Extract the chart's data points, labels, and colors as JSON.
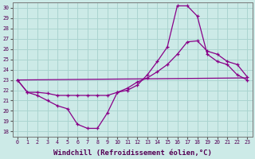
{
  "background_color": "#cceae7",
  "grid_color": "#aad4d0",
  "line_color": "#880088",
  "marker": "+",
  "xlabel": "Windchill (Refroidissement éolien,°C)",
  "xlabel_fontsize": 6.5,
  "ylabel_ticks": [
    18,
    19,
    20,
    21,
    22,
    23,
    24,
    25,
    26,
    27,
    28,
    29,
    30
  ],
  "xlim": [
    -0.5,
    23.5
  ],
  "ylim": [
    17.5,
    30.5
  ],
  "xtick_labels": [
    "0",
    "1",
    "2",
    "3",
    "4",
    "5",
    "6",
    "7",
    "8",
    "9",
    "10",
    "11",
    "12",
    "13",
    "14",
    "15",
    "16",
    "17",
    "18",
    "19",
    "20",
    "21",
    "22",
    "23"
  ],
  "series": [
    {
      "x": [
        0,
        1,
        2,
        3,
        4,
        5,
        6,
        7,
        8,
        9,
        10,
        11,
        12,
        13,
        14,
        15,
        16,
        17,
        18,
        19,
        20,
        21,
        22,
        23
      ],
      "y": [
        23,
        21.8,
        21.5,
        21.0,
        20.5,
        20.2,
        18.7,
        18.3,
        18.3,
        19.8,
        21.8,
        22.0,
        22.5,
        23.5,
        24.8,
        26.2,
        30.2,
        30.2,
        29.2,
        25.5,
        24.8,
        24.5,
        23.5,
        23.0
      ]
    },
    {
      "x": [
        0,
        1,
        2,
        3,
        4,
        5,
        6,
        7,
        8,
        9,
        10,
        11,
        12,
        13,
        14,
        15,
        16,
        17,
        18,
        19,
        20,
        21,
        22,
        23
      ],
      "y": [
        23,
        21.8,
        21.8,
        21.7,
        21.5,
        21.5,
        21.5,
        21.5,
        21.5,
        21.5,
        21.8,
        22.2,
        22.8,
        23.2,
        23.8,
        24.5,
        25.5,
        26.7,
        26.8,
        25.8,
        25.5,
        24.8,
        24.5,
        23.3
      ]
    },
    {
      "x": [
        0,
        23
      ],
      "y": [
        23,
        23.2
      ]
    }
  ]
}
